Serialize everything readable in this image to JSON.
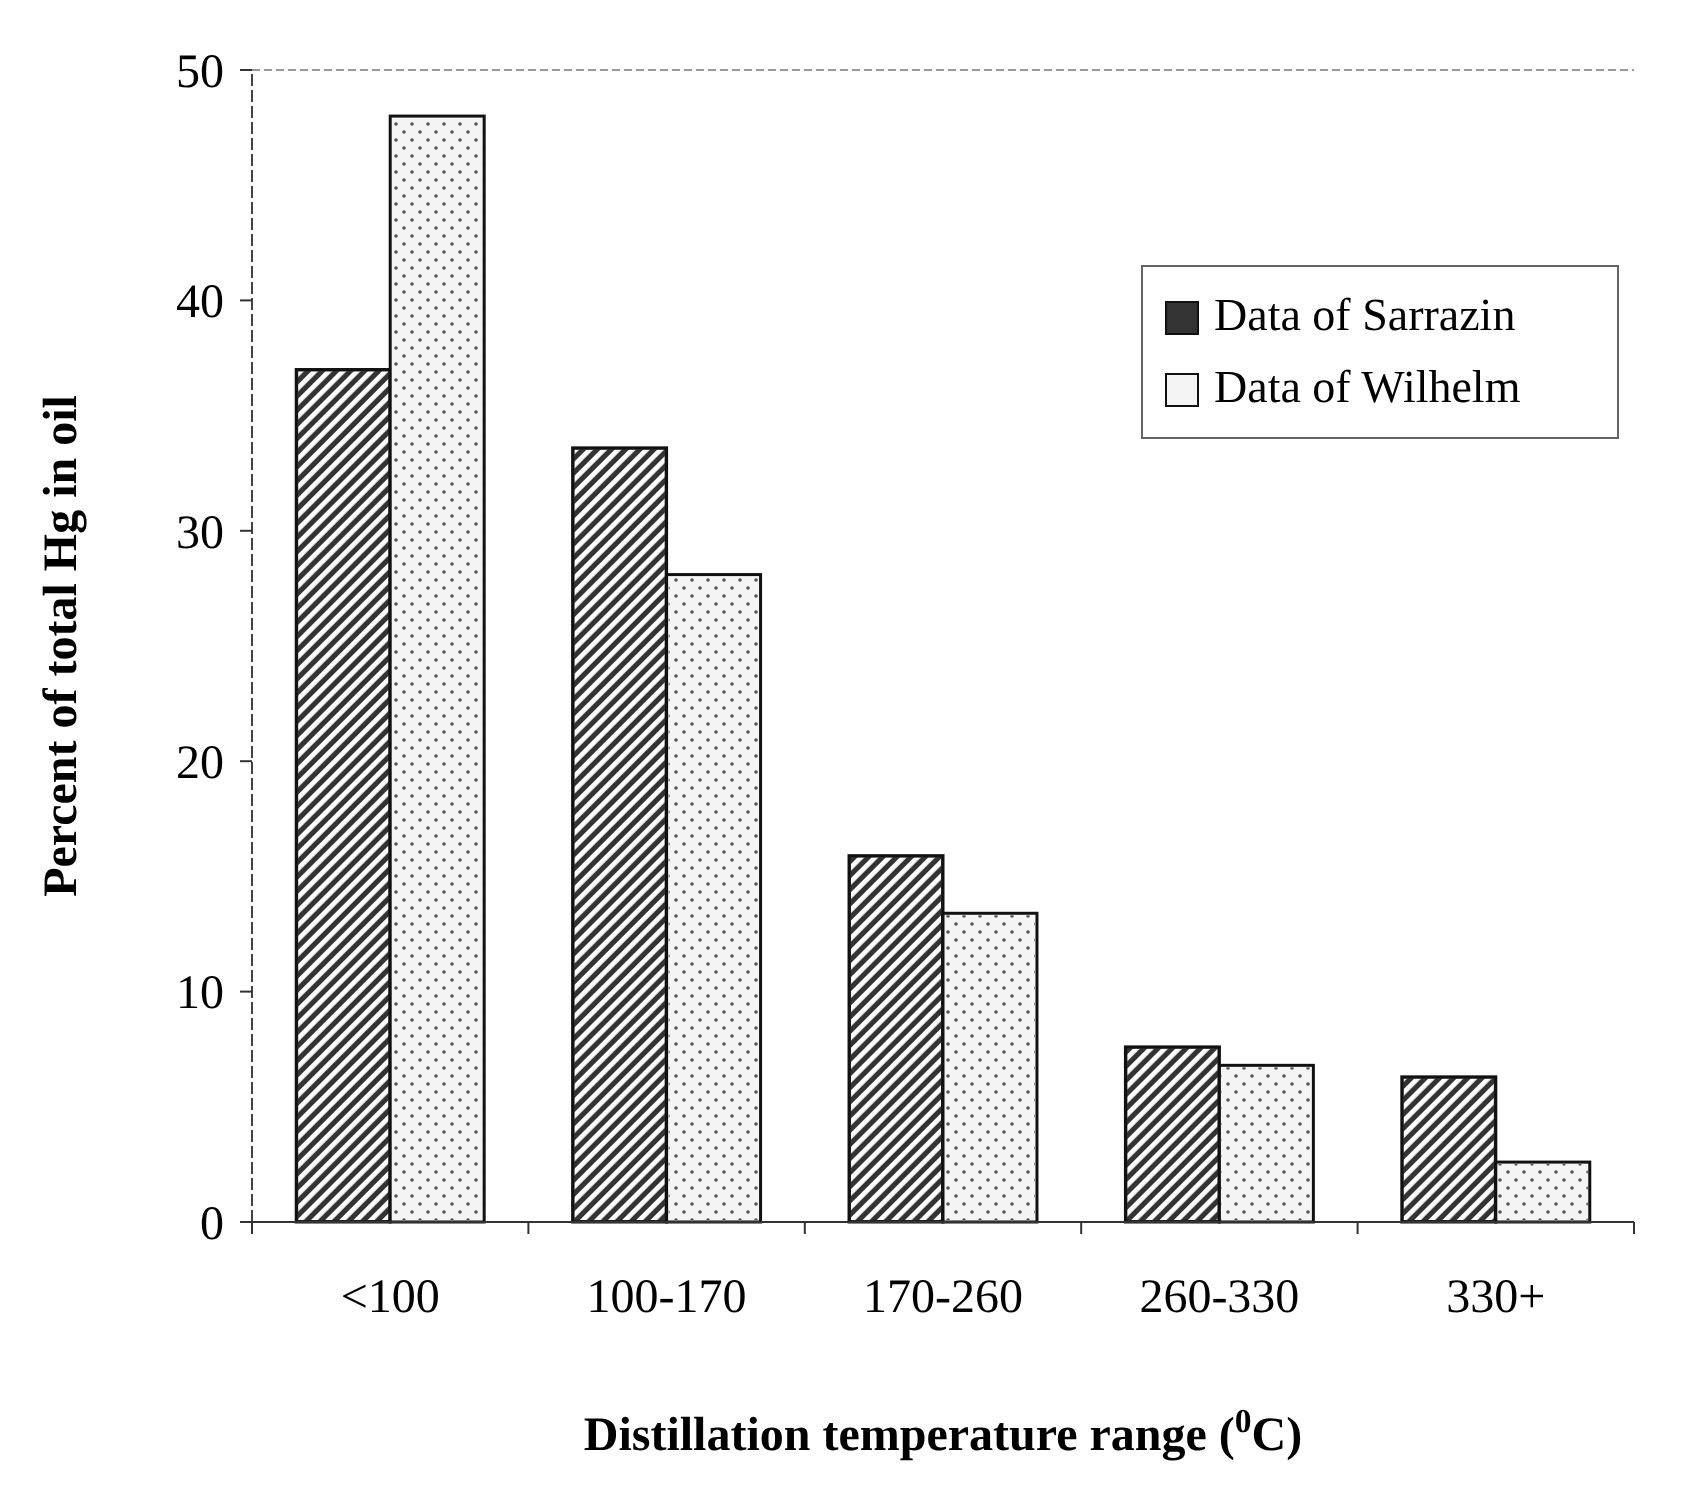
{
  "chart_data": {
    "type": "bar",
    "categories": [
      "<100",
      "100-170",
      "170-260",
      "260-330",
      "330+"
    ],
    "series": [
      {
        "name": "Data of Sarrazin",
        "color": "#333333",
        "values": [
          37.0,
          33.6,
          15.9,
          7.6,
          6.3
        ]
      },
      {
        "name": "Data of Wilhelm",
        "color": "#f4f4f4",
        "values": [
          48.0,
          28.1,
          13.4,
          6.8,
          2.6
        ]
      }
    ],
    "xlabel": "Distillation temperature range ($^{0}$C)",
    "ylabel": "Percent of total Hg in oil",
    "ylim": [
      0,
      50
    ],
    "yticks": [
      0,
      10,
      20,
      30,
      40,
      50
    ],
    "grid": false,
    "legend": "top right"
  }
}
